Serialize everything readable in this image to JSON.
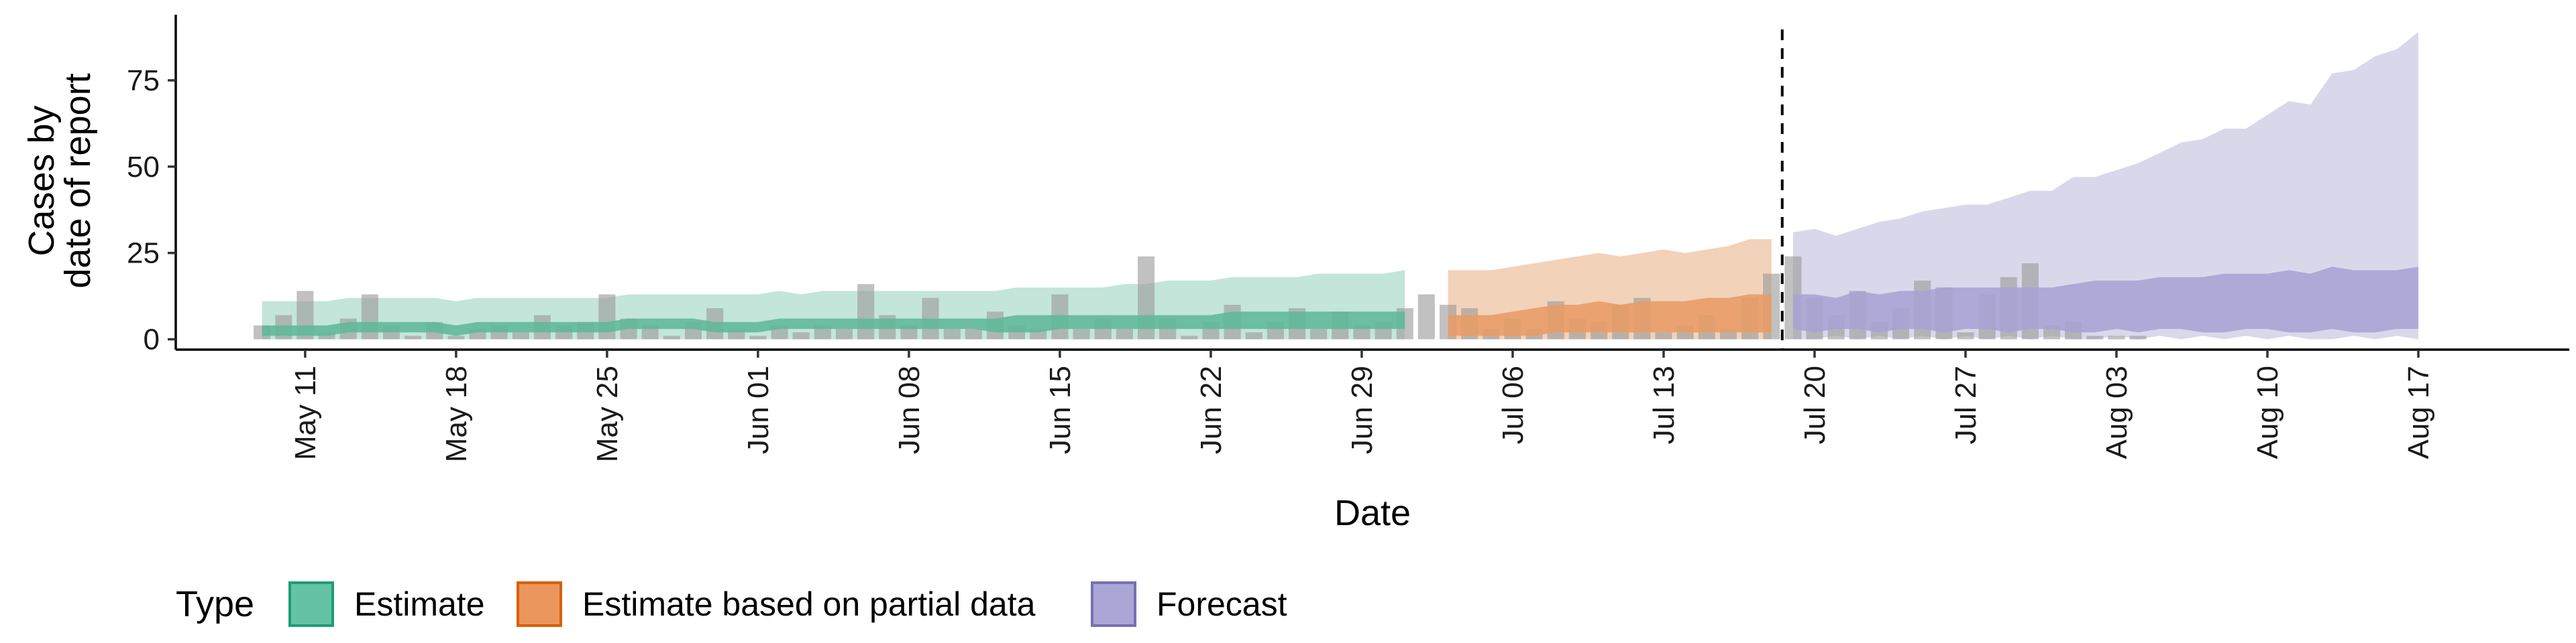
{
  "chart_data": {
    "type": "area",
    "xlabel": "Date",
    "ylabel": "Cases by\ndate of report",
    "ylim": [
      -3,
      94
    ],
    "yticks": [
      0,
      25,
      50,
      75
    ],
    "xlim": [
      "2020-05-05",
      "2020-08-24"
    ],
    "xticks": [
      "2020-05-11",
      "2020-05-18",
      "2020-05-25",
      "2020-06-01",
      "2020-06-08",
      "2020-06-15",
      "2020-06-22",
      "2020-06-29",
      "2020-07-06",
      "2020-07-13",
      "2020-07-20",
      "2020-07-27",
      "2020-08-03",
      "2020-08-10",
      "2020-08-17"
    ],
    "xtick_labels": [
      "May 11",
      "May 18",
      "May 25",
      "Jun 01",
      "Jun 08",
      "Jun 15",
      "Jun 22",
      "Jun 29",
      "Jul 06",
      "Jul 13",
      "Jul 20",
      "Jul 27",
      "Aug 03",
      "Aug 10",
      "Aug 17"
    ],
    "grid": false,
    "legend_position": "bottom",
    "legend_title": "Type",
    "vline_date": "2020-07-19",
    "colors": {
      "estimate_outer": "#c4e5da",
      "estimate_inner": "#5eb898",
      "partial_outer": "#f2d2b9",
      "partial_inner": "#e89b66",
      "forecast_outer": "#d9d8eb",
      "forecast_inner": "#a7a2d3",
      "bars": "#9b9b9b",
      "estimate_key_fill": "#66c2a5",
      "estimate_key_border": "#1b9e77",
      "partial_key_fill": "#eb965c",
      "partial_key_border": "#d95f02",
      "forecast_key_fill": "#aaa6d6",
      "forecast_key_border": "#7570b3"
    },
    "reported_cases": {
      "start": "2020-05-09",
      "values": [
        4,
        7,
        14,
        2,
        6,
        13,
        4,
        1,
        5,
        1,
        3,
        4,
        2,
        7,
        4,
        5,
        13,
        6,
        4,
        1,
        5,
        9,
        3,
        1,
        4,
        2,
        4,
        3,
        16,
        7,
        4,
        12,
        3,
        3,
        8,
        4,
        3,
        13,
        3,
        6,
        3,
        24,
        6,
        1,
        5,
        10,
        2,
        5,
        9,
        3,
        8,
        4,
        5,
        9,
        13,
        10,
        9,
        3,
        6,
        3,
        11,
        6,
        5,
        10,
        12,
        2,
        4,
        7,
        3,
        12,
        19,
        24,
        12,
        7,
        14,
        5,
        9,
        17,
        15,
        2,
        13,
        18,
        22,
        4,
        5,
        1,
        1,
        1
      ]
    },
    "series": [
      {
        "name": "Estimate",
        "start": "2020-05-09",
        "outer_low": [
          0,
          0,
          0,
          0,
          0,
          0,
          0,
          0,
          0,
          0,
          0,
          0,
          0,
          0,
          0,
          0,
          0,
          0,
          0,
          0,
          0,
          0,
          0,
          0,
          0,
          0,
          0,
          0,
          0,
          0,
          0,
          0,
          0,
          0,
          0,
          0,
          0,
          0,
          0,
          0,
          0,
          0,
          0,
          0,
          0,
          0,
          0,
          0,
          0,
          0,
          0,
          0,
          0,
          0
        ],
        "outer_high": [
          11,
          11,
          11,
          11,
          12,
          12,
          12,
          12,
          12,
          11,
          12,
          12,
          12,
          12,
          12,
          12,
          12,
          13,
          13,
          13,
          13,
          13,
          13,
          13,
          14,
          13,
          14,
          14,
          14,
          14,
          14,
          14,
          14,
          14,
          14,
          15,
          15,
          15,
          15,
          15,
          16,
          16,
          17,
          17,
          17,
          18,
          18,
          18,
          18,
          19,
          19,
          19,
          19,
          20
        ],
        "inner_low": [
          1,
          1,
          1,
          1,
          2,
          2,
          2,
          2,
          2,
          1,
          2,
          2,
          2,
          2,
          2,
          2,
          2,
          3,
          3,
          3,
          3,
          2,
          2,
          2,
          3,
          3,
          3,
          3,
          3,
          3,
          3,
          3,
          3,
          3,
          2,
          2,
          2,
          3,
          3,
          3,
          3,
          3,
          3,
          3,
          3,
          3,
          3,
          3,
          3,
          3,
          3,
          3,
          3,
          3
        ],
        "inner_high": [
          4,
          4,
          4,
          4,
          5,
          5,
          5,
          5,
          5,
          4,
          5,
          5,
          5,
          5,
          5,
          5,
          5,
          6,
          6,
          6,
          6,
          5,
          5,
          5,
          6,
          6,
          6,
          6,
          6,
          6,
          6,
          6,
          6,
          6,
          6,
          7,
          7,
          7,
          7,
          7,
          7,
          7,
          7,
          7,
          7,
          8,
          8,
          8,
          8,
          8,
          8,
          8,
          8,
          8
        ]
      },
      {
        "name": "Estimate based on partial data",
        "start": "2020-07-03",
        "outer_low": [
          0,
          0,
          0,
          0,
          0,
          0,
          0,
          0,
          0,
          0,
          0,
          0,
          0,
          0,
          0,
          0
        ],
        "outer_high": [
          20,
          20,
          20,
          21,
          22,
          23,
          24,
          25,
          24,
          25,
          26,
          25,
          26,
          27,
          29,
          29
        ],
        "inner_low": [
          1,
          1,
          1,
          1,
          1,
          2,
          2,
          2,
          2,
          2,
          2,
          2,
          2,
          2,
          2,
          2
        ],
        "inner_high": [
          7,
          7,
          7,
          8,
          9,
          10,
          10,
          11,
          10,
          11,
          11,
          11,
          12,
          12,
          13,
          13
        ]
      },
      {
        "name": "Forecast",
        "start": "2020-07-19",
        "outer_low": [
          0,
          0,
          1,
          0,
          1,
          0,
          1,
          0,
          1,
          0,
          1,
          0,
          1,
          0,
          0,
          1,
          0,
          1,
          0,
          1,
          0,
          1,
          0,
          1,
          0,
          0,
          1,
          0,
          1,
          0
        ],
        "outer_high": [
          31,
          32,
          30,
          32,
          34,
          35,
          37,
          38,
          39,
          39,
          41,
          43,
          43,
          47,
          47,
          49,
          51,
          54,
          57,
          58,
          61,
          61,
          65,
          69,
          68,
          77,
          78,
          82,
          84,
          89
        ],
        "inner_low": [
          3,
          2,
          3,
          3,
          2,
          3,
          3,
          2,
          3,
          3,
          2,
          3,
          3,
          2,
          2,
          3,
          2,
          3,
          3,
          2,
          2,
          3,
          3,
          2,
          2,
          3,
          2,
          2,
          3,
          3
        ],
        "inner_high": [
          13,
          13,
          12,
          14,
          13,
          14,
          14,
          15,
          15,
          15,
          15,
          15,
          15,
          16,
          17,
          17,
          17,
          18,
          18,
          18,
          19,
          19,
          19,
          20,
          19,
          21,
          20,
          20,
          20,
          21
        ]
      }
    ]
  }
}
